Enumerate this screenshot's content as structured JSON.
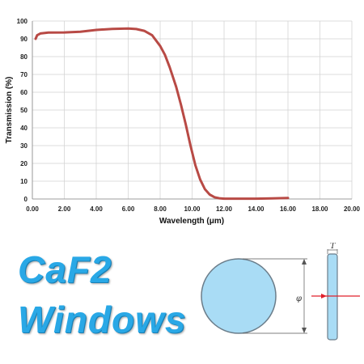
{
  "chart_data": {
    "type": "line",
    "xlabel": "Wavelength (μm)",
    "ylabel": "Transmission (%)",
    "xlim": [
      0,
      20
    ],
    "ylim": [
      0,
      100
    ],
    "xticks": [
      "0.00",
      "2.00",
      "4.00",
      "6.00",
      "8.00",
      "10.00",
      "12.00",
      "14.00",
      "16.00",
      "18.00",
      "20.00"
    ],
    "yticks": [
      "0",
      "10",
      "20",
      "30",
      "40",
      "50",
      "60",
      "70",
      "80",
      "90",
      "100"
    ],
    "grid": true,
    "series": [
      {
        "color": "#b84a45",
        "x": [
          0.2,
          0.3,
          0.5,
          1.0,
          2.0,
          3.0,
          4.0,
          5.0,
          6.0,
          6.5,
          7.0,
          7.5,
          8.0,
          8.3,
          8.6,
          9.0,
          9.3,
          9.6,
          9.9,
          10.2,
          10.5,
          10.8,
          11.1,
          11.4,
          11.7,
          12.0,
          13.0,
          14.0,
          15.0,
          16.0
        ],
        "y": [
          90,
          92,
          93,
          93.5,
          93.6,
          94,
          95,
          95.6,
          95.8,
          95.5,
          94.5,
          92,
          86,
          81,
          74,
          63,
          53,
          42,
          30,
          19,
          11,
          5.5,
          2.5,
          1,
          0.4,
          0.2,
          0.2,
          0.2,
          0.3,
          0.6
        ]
      }
    ]
  },
  "product_title": {
    "line1": "CaF2",
    "line2": "Windows"
  },
  "diagram": {
    "diameter_symbol": "φ",
    "thickness_symbol": "T",
    "window_fill": "#a9dcf5",
    "window_stroke": "#6b7d8a",
    "beam_color": "#e0202a"
  }
}
